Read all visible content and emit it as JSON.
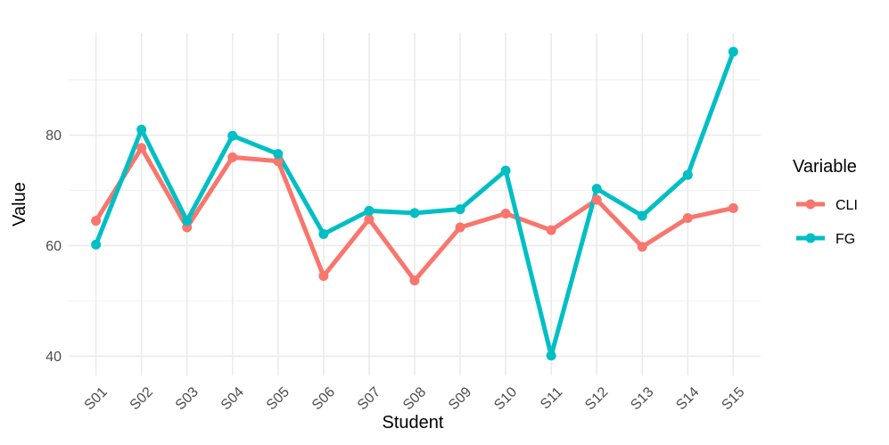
{
  "chart_data": {
    "type": "line",
    "xlabel": "Student",
    "ylabel": "Value",
    "categories": [
      "S01",
      "S02",
      "S03",
      "S04",
      "S05",
      "S06",
      "S07",
      "S08",
      "S09",
      "S10",
      "S11",
      "S12",
      "S13",
      "S14",
      "S15"
    ],
    "yticks": [
      40,
      60,
      80
    ],
    "ylim": [
      36.5,
      98.5
    ],
    "grid": true,
    "legend": {
      "title": "Variable",
      "position": "right"
    },
    "series": [
      {
        "name": "CLI",
        "color": "#F8766D",
        "values": [
          64.5,
          77.7,
          63.3,
          76.0,
          75.3,
          54.5,
          64.8,
          53.7,
          63.3,
          65.8,
          62.8,
          68.3,
          59.8,
          65.0,
          66.8
        ]
      },
      {
        "name": "FG",
        "color": "#00BFC4",
        "values": [
          60.2,
          81.0,
          64.5,
          79.9,
          76.6,
          62.1,
          66.3,
          65.9,
          66.6,
          73.6,
          40.1,
          70.3,
          65.4,
          72.8,
          95.1
        ]
      }
    ]
  }
}
